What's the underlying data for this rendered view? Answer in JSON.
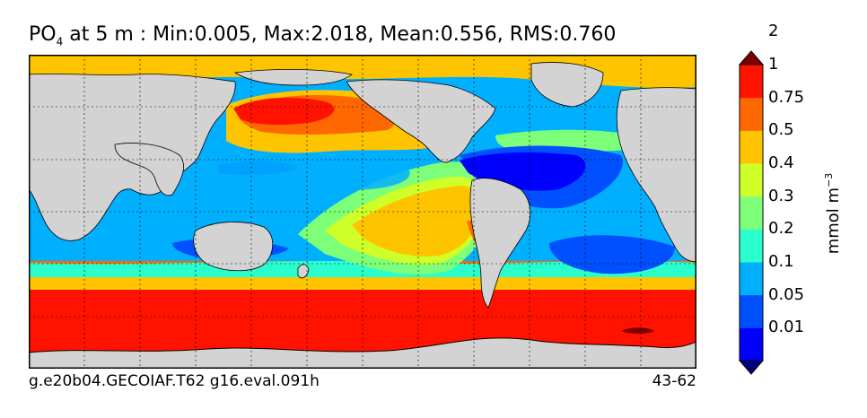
{
  "title": {
    "var": "PO",
    "sub": "4",
    "rest": " at 5 m : Min:0.005, Max:2.018, Mean:0.556, RMS:0.760"
  },
  "footer": {
    "case": "g.e20b04.GECOIAF.T62 g16.eval.091h",
    "years": "43-62"
  },
  "colorbar": {
    "units_base": "mmol m",
    "units_exp": "−3",
    "colors": [
      "#00007f",
      "#0000ff",
      "#0050ff",
      "#00b0ff",
      "#29ffce",
      "#7dff7a",
      "#ceff29",
      "#ffc400",
      "#ff6800",
      "#ff1300",
      "#7f0000"
    ],
    "labels": [
      "0.01",
      "0.05",
      "0.1",
      "0.2",
      "0.3",
      "0.4",
      "0.5",
      "0.75",
      "1",
      "2"
    ],
    "extend": "both"
  },
  "map": {
    "land_color": "#d3d3d3",
    "grid": "on",
    "colors": {
      "southern_ocean": "#ff1300",
      "north_pacific_high": "#ff6800",
      "arctic": "#ffc400",
      "subtropical_atlantic": "#0000ff"
    }
  }
}
